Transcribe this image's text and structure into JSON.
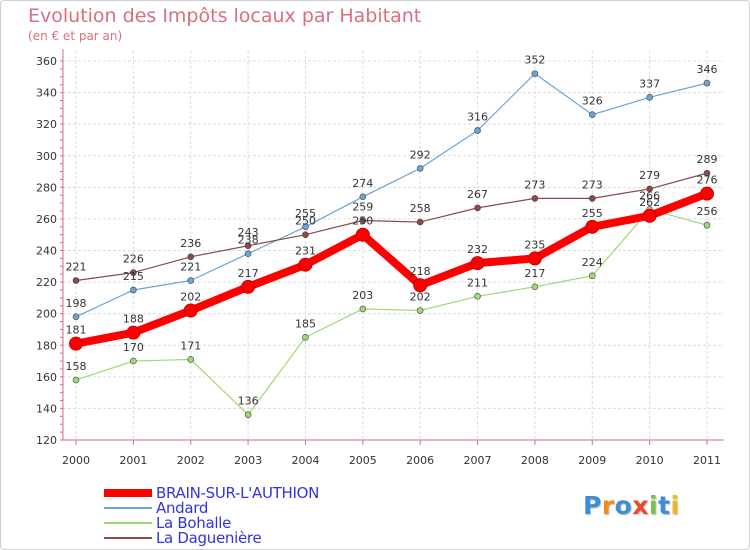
{
  "chart_data": {
    "type": "line",
    "title": "Evolution des Impôts locaux par Habitant",
    "subtitle": "(en € et par an)",
    "xlabel": "",
    "ylabel": "",
    "ylim": [
      120,
      360
    ],
    "yticks": [
      120,
      140,
      160,
      180,
      200,
      220,
      240,
      260,
      280,
      300,
      320,
      340,
      360
    ],
    "grid": true,
    "legend_position": "bottom-left",
    "categories": [
      "2000",
      "2001",
      "2002",
      "2003",
      "2004",
      "2005",
      "2006",
      "2007",
      "2008",
      "2009",
      "2010",
      "2011"
    ],
    "series": [
      {
        "name": "BRAIN-SUR-L'AUTHION",
        "color": "#ff0000",
        "values": [
          181,
          188,
          202,
          217,
          231,
          250,
          218,
          232,
          235,
          255,
          262,
          276
        ]
      },
      {
        "name": "Andard",
        "color": "#6aa4d8",
        "values": [
          198,
          215,
          221,
          238,
          255,
          274,
          292,
          316,
          352,
          326,
          337,
          346
        ]
      },
      {
        "name": "La Bohalle",
        "color": "#9fd870",
        "values": [
          158,
          170,
          171,
          136,
          185,
          203,
          202,
          211,
          217,
          224,
          266,
          256
        ]
      },
      {
        "name": "La Daguenière",
        "color": "#8a4a4a",
        "values": [
          221,
          226,
          236,
          243,
          250,
          259,
          258,
          267,
          273,
          273,
          279,
          289
        ]
      }
    ]
  },
  "logo": {
    "text": "Proxiti",
    "colors": [
      "#3a8fd8",
      "#f08a1a",
      "#3a8fd8",
      "#e84a2a",
      "#7cc04a",
      "#3a8fd8",
      "#f0b81a"
    ]
  }
}
